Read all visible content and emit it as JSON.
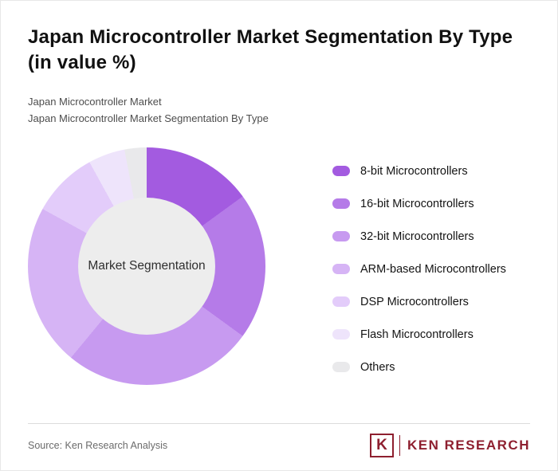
{
  "header": {
    "title_line1": "Japan Microcontroller Market Segmentation By Type",
    "title_line2": "(in value %)",
    "subtitle_line1": "Japan Microcontroller Market",
    "subtitle_line2": "Japan Microcontroller Market Segmentation By Type"
  },
  "chart_data": {
    "type": "pie",
    "variant": "donut",
    "title": "Japan Microcontroller Market Segmentation By Type (in value %)",
    "center_label": "Market Segmentation",
    "center_color": "#EDEDED",
    "legend_position": "right",
    "start_angle_deg": 0,
    "direction": "clockwise",
    "labels": [
      "8-bit Microcontrollers",
      "16-bit Microcontrollers",
      "32-bit Microcontrollers",
      "ARM-based Microcontrollers",
      "DSP Microcontrollers",
      "Flash Microcontrollers",
      "Others"
    ],
    "values": [
      15,
      20,
      26,
      22,
      9,
      5,
      3
    ],
    "colors": [
      "#A35BE0",
      "#B57BE8",
      "#C79AF0",
      "#D6B4F5",
      "#E3CCFA",
      "#EEE4FB",
      "#E9E9EB"
    ]
  },
  "footer": {
    "source": "Source: Ken Research Analysis",
    "logo_icon_letter": "K",
    "logo_text": "KEN RESEARCH",
    "logo_color": "#8E1F2F"
  }
}
